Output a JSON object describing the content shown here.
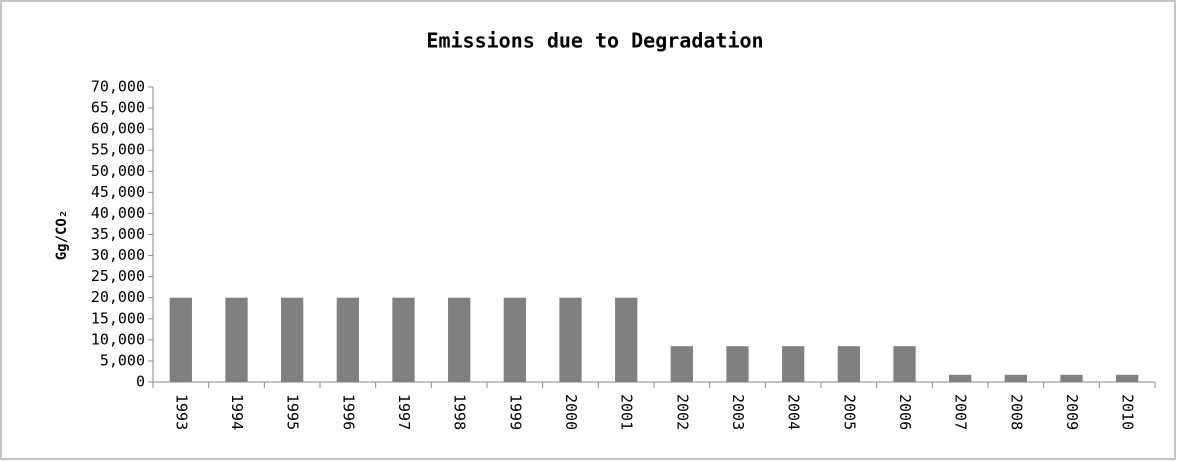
{
  "chart_data": {
    "type": "bar",
    "title": "Emissions due to Degradation",
    "y_label": "Gg/CO₂",
    "categories": [
      "1993",
      "1994",
      "1995",
      "1996",
      "1997",
      "1998",
      "1999",
      "2000",
      "2001",
      "2002",
      "2003",
      "2004",
      "2005",
      "2006",
      "2007",
      "2008",
      "2009",
      "2010"
    ],
    "values": [
      20000,
      20000,
      20000,
      20000,
      20000,
      20000,
      20000,
      20000,
      20000,
      8500,
      8500,
      8500,
      8500,
      8500,
      1700,
      1700,
      1700,
      1700
    ],
    "color": "#808080",
    "ylim": [
      0,
      70000
    ],
    "yticks": [
      0,
      {
        "value": 5000,
        "label": "5,000"
      },
      {
        "value": 10000,
        "label": "10,000"
      },
      {
        "value": 15000,
        "label": "15,000"
      },
      {
        "value": 20000,
        "label": "20,000"
      },
      {
        "value": 25000,
        "label": "25,000"
      },
      {
        "value": 30000,
        "label": "30,000"
      },
      {
        "value": 35000,
        "label": "35,000"
      },
      {
        "value": 40000,
        "label": "40,000"
      },
      {
        "value": 45000,
        "label": "45,000"
      },
      {
        "value": 50000,
        "label": "50,000"
      },
      {
        "value": 55000,
        "label": "55,000"
      },
      {
        "value": 60000,
        "label": "60,000"
      },
      {
        "value": 65000,
        "label": "65,000"
      },
      {
        "value": 70000,
        "label": "70,000"
      }
    ],
    "grid": false
  }
}
